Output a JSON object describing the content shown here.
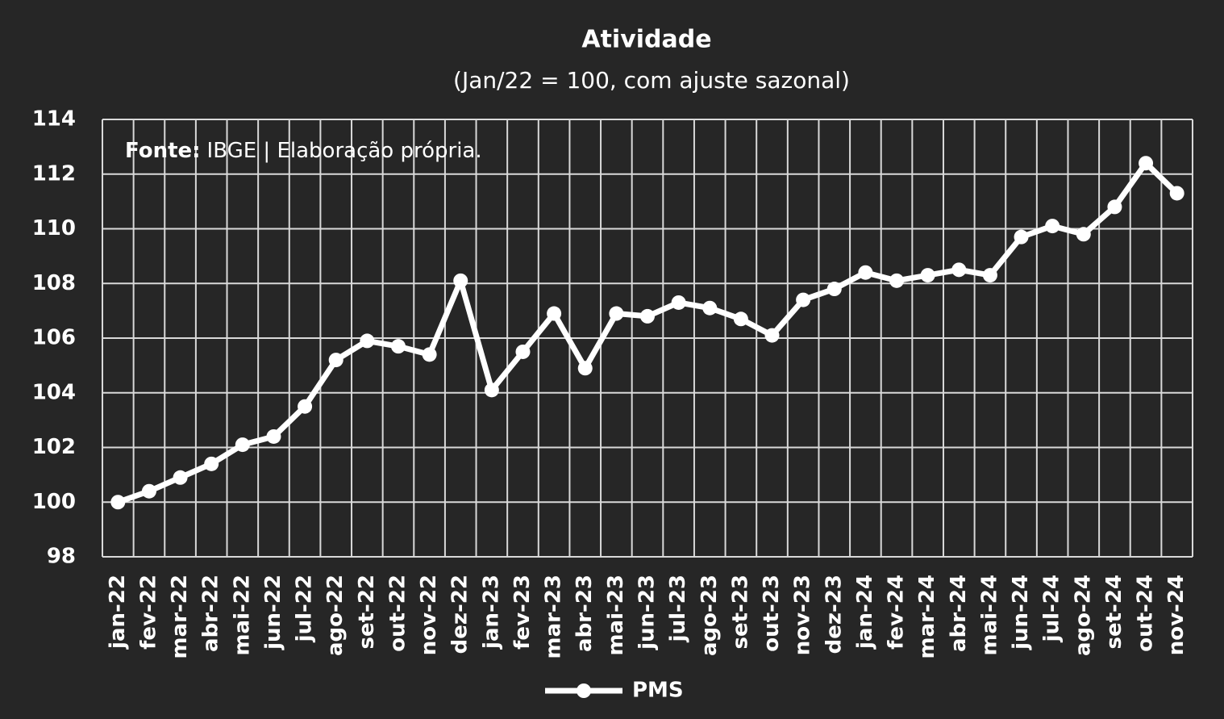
{
  "chart_data": {
    "type": "line",
    "title": "Atividade",
    "subtitle": "(Jan/22 = 100, com ajuste sazonal)",
    "source_label": "Fonte:",
    "source_text": "IBGE | Elaboração própria.",
    "categories": [
      "jan-22",
      "fev-22",
      "mar-22",
      "abr-22",
      "mai-22",
      "jun-22",
      "jul-22",
      "ago-22",
      "set-22",
      "out-22",
      "nov-22",
      "dez-22",
      "jan-23",
      "fev-23",
      "mar-23",
      "abr-23",
      "mai-23",
      "jun-23",
      "jul-23",
      "ago-23",
      "set-23",
      "out-23",
      "nov-23",
      "dez-23",
      "jan-24",
      "fev-24",
      "mar-24",
      "abr-24",
      "mai-24",
      "jun-24",
      "jul-24",
      "ago-24",
      "set-24",
      "out-24",
      "nov-24"
    ],
    "series": [
      {
        "name": "PMS",
        "color": "#ffffff",
        "values": [
          100.0,
          100.4,
          100.9,
          101.4,
          102.1,
          102.4,
          103.5,
          105.2,
          105.9,
          105.7,
          105.4,
          108.1,
          104.1,
          105.5,
          106.9,
          104.9,
          106.9,
          106.8,
          107.3,
          107.1,
          106.7,
          106.1,
          107.4,
          107.8,
          108.4,
          108.1,
          108.3,
          108.5,
          108.3,
          109.7,
          110.1,
          109.8,
          110.8,
          112.4,
          111.3
        ]
      }
    ],
    "ylim": [
      98,
      114
    ],
    "yticks": [
      98,
      100,
      102,
      104,
      106,
      108,
      110,
      112,
      114
    ],
    "grid": true,
    "legend": "bottom"
  }
}
